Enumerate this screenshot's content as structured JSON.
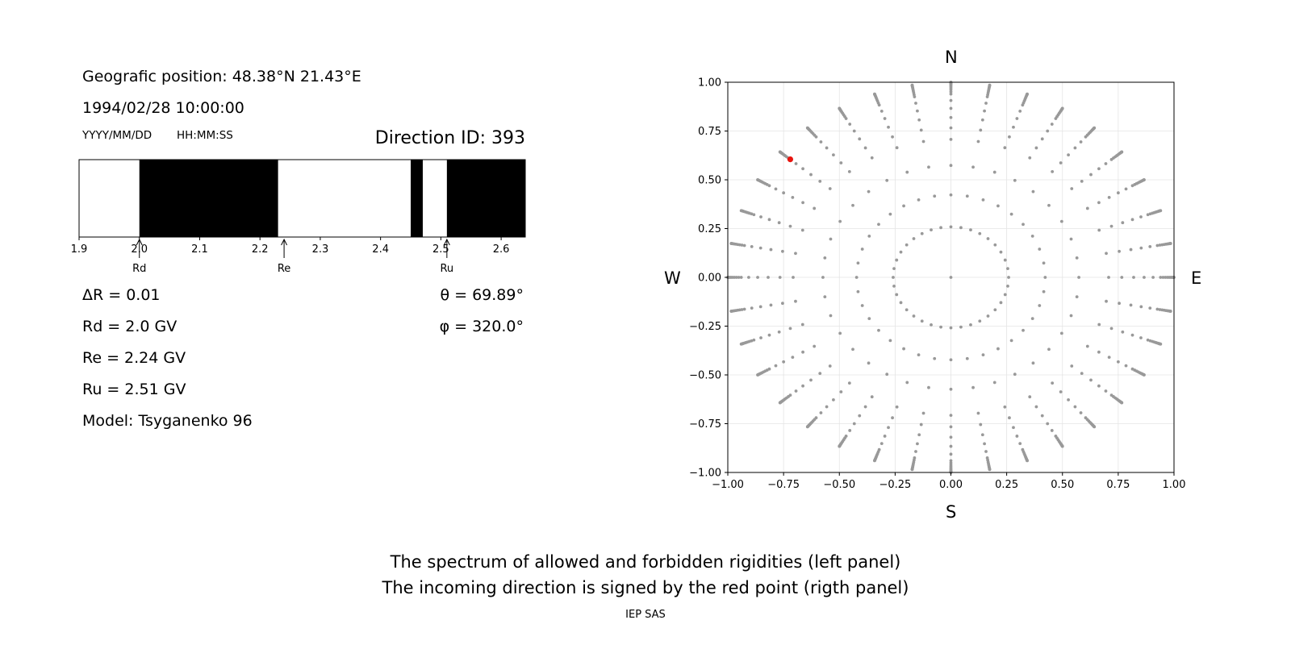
{
  "left_panel": {
    "position_label": "Geografic position: 48.38°N 21.43°E",
    "datetime": "1994/02/28 10:00:00",
    "date_format": "YYYY/MM/DD",
    "time_format": "HH:MM:SS",
    "direction_id": "Direction ID: 393",
    "delta_r": "ΔR = 0.01",
    "rd": "Rd = 2.0 GV",
    "re": "Re = 2.24 GV",
    "ru": "Ru = 2.51 GV",
    "model": "Model: Tsyganenko 96",
    "theta": "θ = 69.89°",
    "phi": "φ = 320.0°"
  },
  "right_panel": {
    "north": "N",
    "south": "S",
    "west": "W",
    "east": "E"
  },
  "caption": {
    "line1": "The spectrum of allowed and forbidden rigidities (left panel)",
    "line2": "The incoming direction is signed by the red point (rigth panel)",
    "credit": "IEP SAS"
  },
  "chart_data": [
    {
      "type": "bar",
      "description_role": "rigidity spectrum",
      "xlim": [
        1.9,
        2.64
      ],
      "xticks": [
        1.9,
        2.0,
        2.1,
        2.2,
        2.3,
        2.4,
        2.5,
        2.6
      ],
      "xtick_labels": [
        "1.9",
        "2.0",
        "2.1",
        "2.2",
        "2.3",
        "2.4",
        "2.5",
        "2.6"
      ],
      "forbidden_intervals": [
        [
          2.0,
          2.23
        ],
        [
          2.45,
          2.47
        ],
        [
          2.51,
          2.64
        ]
      ],
      "markers": [
        {
          "label": "Rd",
          "value": 2.0
        },
        {
          "label": "Re",
          "value": 2.24
        },
        {
          "label": "Ru",
          "value": 2.51
        }
      ],
      "colors": {
        "forbidden": "#000000",
        "allowed": "#ffffff"
      }
    },
    {
      "type": "scatter",
      "xlim": [
        -1,
        1
      ],
      "ylim": [
        -1,
        1
      ],
      "xticks": [
        -1.0,
        -0.75,
        -0.5,
        -0.25,
        0.0,
        0.25,
        0.5,
        0.75,
        1.0
      ],
      "yticks": [
        -1.0,
        -0.75,
        -0.5,
        -0.25,
        0.0,
        0.25,
        0.5,
        0.75,
        1.0
      ],
      "tick_labels": [
        "−1.00",
        "−0.75",
        "−0.50",
        "−0.25",
        "0.00",
        "0.25",
        "0.50",
        "0.75",
        "1.00"
      ],
      "grid": true,
      "directions_grid": {
        "azimuth_step_deg": 10,
        "zenith_deg": [
          0,
          15,
          25,
          35,
          45,
          50,
          55,
          60,
          65,
          70,
          72,
          74,
          76,
          78,
          80,
          82,
          84,
          86,
          88,
          90
        ]
      },
      "highlight": {
        "x": -0.72,
        "y": 0.605
      },
      "colors": {
        "grid_points": "#999999",
        "highlight": "#e8140e",
        "gridline": "#e4e4e4"
      }
    }
  ]
}
